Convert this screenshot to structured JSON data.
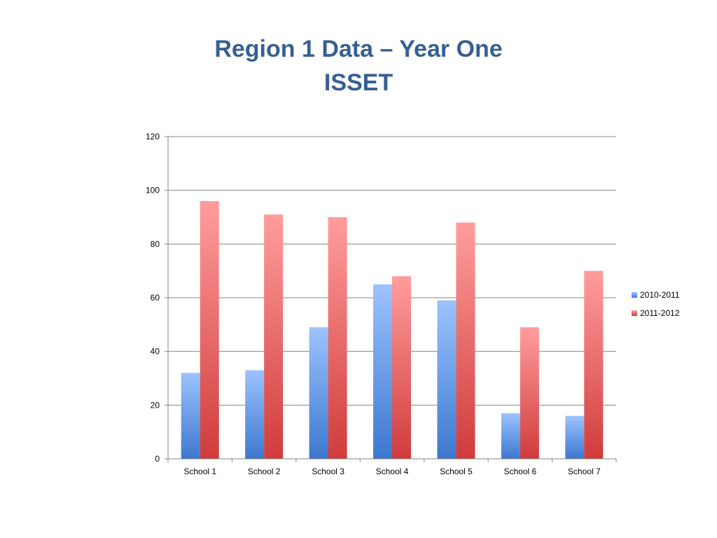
{
  "slide": {
    "title_line1": "Region 1 Data – Year One",
    "title_line2": "ISSET"
  },
  "chart_data": {
    "type": "bar",
    "categories": [
      "School 1",
      "School 2",
      "School 3",
      "School 4",
      "School 5",
      "School 6",
      "School 7"
    ],
    "series": [
      {
        "name": "2010-2011",
        "values": [
          32,
          33,
          49,
          65,
          59,
          17,
          16
        ],
        "color_top": "#9dc3fd",
        "color_bottom": "#3c78d0"
      },
      {
        "name": "2011-2012",
        "values": [
          96,
          91,
          90,
          68,
          88,
          49,
          70
        ],
        "color_top": "#ff9d9c",
        "color_bottom": "#d03c3c"
      }
    ],
    "yticks": [
      "0",
      "20",
      "40",
      "60",
      "80",
      "100",
      "120"
    ],
    "ylim": [
      0,
      120
    ],
    "grid": true,
    "legend_position": "right"
  }
}
